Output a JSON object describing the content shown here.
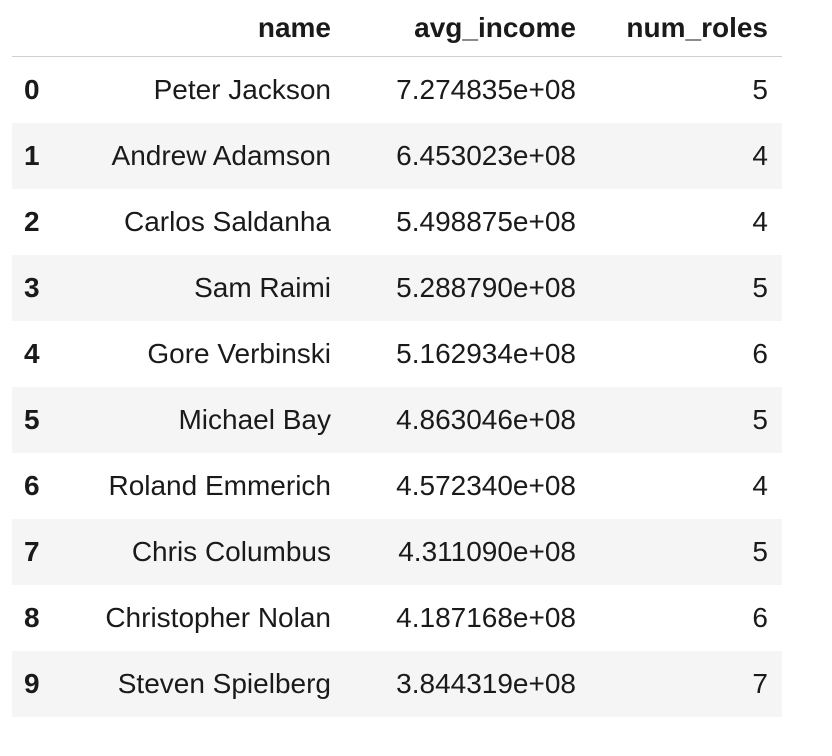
{
  "table": {
    "columns": [
      "",
      "name",
      "avg_income",
      "num_roles"
    ],
    "rows": [
      {
        "index": "0",
        "name": "Peter Jackson",
        "avg_income": "7.274835e+08",
        "num_roles": "5"
      },
      {
        "index": "1",
        "name": "Andrew Adamson",
        "avg_income": "6.453023e+08",
        "num_roles": "4"
      },
      {
        "index": "2",
        "name": "Carlos Saldanha",
        "avg_income": "5.498875e+08",
        "num_roles": "4"
      },
      {
        "index": "3",
        "name": "Sam Raimi",
        "avg_income": "5.288790e+08",
        "num_roles": "5"
      },
      {
        "index": "4",
        "name": "Gore Verbinski",
        "avg_income": "5.162934e+08",
        "num_roles": "6"
      },
      {
        "index": "5",
        "name": "Michael Bay",
        "avg_income": "4.863046e+08",
        "num_roles": "5"
      },
      {
        "index": "6",
        "name": "Roland Emmerich",
        "avg_income": "4.572340e+08",
        "num_roles": "4"
      },
      {
        "index": "7",
        "name": "Chris Columbus",
        "avg_income": "4.311090e+08",
        "num_roles": "5"
      },
      {
        "index": "8",
        "name": "Christopher Nolan",
        "avg_income": "4.187168e+08",
        "num_roles": "6"
      },
      {
        "index": "9",
        "name": "Steven Spielberg",
        "avg_income": "3.844319e+08",
        "num_roles": "7"
      }
    ]
  },
  "colors": {
    "stripe": "#f5f5f5",
    "header_rule": "#d0d0d0",
    "text": "#1a1a1a"
  }
}
